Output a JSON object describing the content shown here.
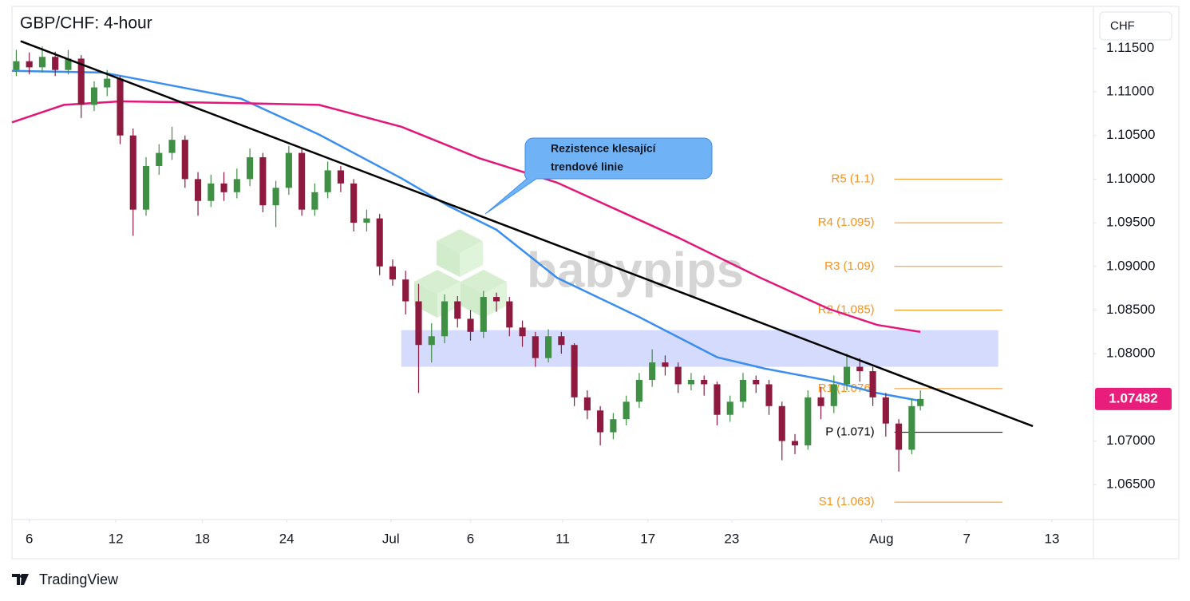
{
  "chart_data": {
    "type": "candlestick",
    "title": "GBP/CHF: 4-hour",
    "currency": "CHF",
    "watermark": "babypips",
    "brand": "TradingView",
    "xlim": [
      0,
      250
    ],
    "ylim": [
      1.061,
      1.1196
    ],
    "xticks": [
      {
        "value": 4,
        "label": "6"
      },
      {
        "value": 24,
        "label": "12"
      },
      {
        "value": 44,
        "label": "18"
      },
      {
        "value": 63.5,
        "label": "24"
      },
      {
        "value": 87.6,
        "label": "Jul"
      },
      {
        "value": 106,
        "label": "6"
      },
      {
        "value": 127.3,
        "label": "11"
      },
      {
        "value": 147,
        "label": "17"
      },
      {
        "value": 166.4,
        "label": "23"
      },
      {
        "value": 201,
        "label": "Aug"
      },
      {
        "value": 220.7,
        "label": "7"
      },
      {
        "value": 240.4,
        "label": "13"
      }
    ],
    "yticks": [
      {
        "value": 1.065,
        "label": "1.06500"
      },
      {
        "value": 1.07,
        "label": "1.07000"
      },
      {
        "value": 1.075,
        "label": "1.07500"
      },
      {
        "value": 1.08,
        "label": "1.08000"
      },
      {
        "value": 1.085,
        "label": "1.08500"
      },
      {
        "value": 1.09,
        "label": "1.09000"
      },
      {
        "value": 1.095,
        "label": "1.09500"
      },
      {
        "value": 1.1,
        "label": "1.10000"
      },
      {
        "value": 1.105,
        "label": "1.10500"
      },
      {
        "value": 1.11,
        "label": "1.11000"
      },
      {
        "value": 1.115,
        "label": "1.11500"
      }
    ],
    "up_color": "#3f8f45",
    "down_color": "#8e1b3f",
    "candles": [
      [
        1,
        1.1125,
        1.1148,
        1.1118,
        1.1135
      ],
      [
        4,
        1.1135,
        1.1145,
        1.112,
        1.1128
      ],
      [
        7,
        1.1128,
        1.1152,
        1.1122,
        1.114
      ],
      [
        10,
        1.114,
        1.1146,
        1.1118,
        1.1125
      ],
      [
        13,
        1.1125,
        1.1148,
        1.112,
        1.1138
      ],
      [
        16,
        1.1138,
        1.1142,
        1.107,
        1.1085
      ],
      [
        19,
        1.1085,
        1.1112,
        1.1078,
        1.1105
      ],
      [
        22,
        1.1105,
        1.1125,
        1.1095,
        1.1115
      ],
      [
        25,
        1.1115,
        1.1118,
        1.104,
        1.105
      ],
      [
        28,
        1.105,
        1.1058,
        1.0935,
        1.0965
      ],
      [
        31,
        1.0965,
        1.1025,
        1.0958,
        1.1015
      ],
      [
        34,
        1.1015,
        1.104,
        1.1005,
        1.103
      ],
      [
        37,
        1.103,
        1.106,
        1.1022,
        1.1045
      ],
      [
        40,
        1.1045,
        1.105,
        1.099,
        1.1
      ],
      [
        43,
        1.1,
        1.1008,
        1.0958,
        1.0975
      ],
      [
        46,
        1.0975,
        1.1005,
        1.0968,
        1.0995
      ],
      [
        49,
        1.0995,
        1.1008,
        1.0975,
        1.0985
      ],
      [
        52,
        1.0985,
        1.1012,
        1.0978,
        1.1
      ],
      [
        55,
        1.1,
        1.1035,
        1.0992,
        1.1025
      ],
      [
        58,
        1.1025,
        1.103,
        1.0962,
        1.097
      ],
      [
        61,
        1.097,
        1.0998,
        1.0945,
        1.099
      ],
      [
        64,
        1.099,
        1.1038,
        1.0982,
        1.103
      ],
      [
        67,
        1.103,
        1.1035,
        1.0958,
        1.0965
      ],
      [
        70,
        1.0965,
        1.0995,
        1.0958,
        1.0985
      ],
      [
        73,
        1.0985,
        1.102,
        1.0978,
        1.101
      ],
      [
        76,
        1.101,
        1.1015,
        1.0985,
        1.0995
      ],
      [
        79,
        1.0995,
        1.1,
        1.094,
        1.095
      ],
      [
        82,
        1.095,
        1.0965,
        1.094,
        1.0955
      ],
      [
        85,
        1.0955,
        1.096,
        1.089,
        1.09
      ],
      [
        88,
        1.09,
        1.0908,
        1.0878,
        1.0885
      ],
      [
        91,
        1.0885,
        1.0895,
        1.0845,
        1.086
      ],
      [
        94,
        1.086,
        1.088,
        1.0755,
        1.081
      ],
      [
        97,
        1.081,
        1.0835,
        1.079,
        1.082
      ],
      [
        100,
        1.082,
        1.0868,
        1.0812,
        1.086
      ],
      [
        103,
        1.086,
        1.0866,
        1.083,
        1.084
      ],
      [
        106,
        1.084,
        1.085,
        1.0815,
        1.0825
      ],
      [
        109,
        1.0825,
        1.0872,
        1.0818,
        1.0865
      ],
      [
        112,
        1.0865,
        1.087,
        1.0848,
        1.086
      ],
      [
        115,
        1.086,
        1.0865,
        1.082,
        1.083
      ],
      [
        118,
        1.083,
        1.0838,
        1.0808,
        1.082
      ],
      [
        121,
        1.082,
        1.0825,
        1.0785,
        1.0795
      ],
      [
        124,
        1.0795,
        1.0828,
        1.079,
        1.082
      ],
      [
        127,
        1.082,
        1.0825,
        1.08,
        1.081
      ],
      [
        130,
        1.081,
        1.0812,
        1.074,
        1.075
      ],
      [
        133,
        1.075,
        1.0758,
        1.0725,
        1.0735
      ],
      [
        136,
        1.0735,
        1.074,
        1.0695,
        1.071
      ],
      [
        139,
        1.071,
        1.0732,
        1.0702,
        1.0725
      ],
      [
        142,
        1.0725,
        1.0752,
        1.0718,
        1.0745
      ],
      [
        145,
        1.0745,
        1.0778,
        1.0738,
        1.077
      ],
      [
        148,
        1.077,
        1.0805,
        1.0762,
        1.079
      ],
      [
        151,
        1.079,
        1.0798,
        1.0775,
        1.0785
      ],
      [
        154,
        1.0785,
        1.079,
        1.0755,
        1.0765
      ],
      [
        157,
        1.0765,
        1.0778,
        1.0758,
        1.077
      ],
      [
        160,
        1.077,
        1.0775,
        1.0752,
        1.0765
      ],
      [
        163,
        1.0765,
        1.0768,
        1.0718,
        1.073
      ],
      [
        166,
        1.073,
        1.0752,
        1.0722,
        1.0745
      ],
      [
        169,
        1.0745,
        1.0778,
        1.0738,
        1.077
      ],
      [
        172,
        1.077,
        1.0775,
        1.0755,
        1.0765
      ],
      [
        175,
        1.0765,
        1.077,
        1.073,
        1.074
      ],
      [
        178,
        1.074,
        1.0745,
        1.0678,
        1.07
      ],
      [
        181,
        1.07,
        1.0708,
        1.0685,
        1.0695
      ],
      [
        184,
        1.0695,
        1.0758,
        1.069,
        1.075
      ],
      [
        187,
        1.075,
        1.0762,
        1.0725,
        1.074
      ],
      [
        190,
        1.074,
        1.0775,
        1.0732,
        1.0765
      ],
      [
        193,
        1.0765,
        1.08,
        1.0758,
        1.0785
      ],
      [
        196,
        1.0785,
        1.0795,
        1.0768,
        1.078
      ],
      [
        199,
        1.078,
        1.0785,
        1.074,
        1.075
      ],
      [
        202,
        1.075,
        1.0755,
        1.0705,
        1.072
      ],
      [
        205,
        1.072,
        1.0725,
        1.0665,
        1.069
      ],
      [
        208,
        1.069,
        1.0748,
        1.0685,
        1.074
      ],
      [
        210,
        1.074,
        1.0758,
        1.0735,
        1.07482
      ]
    ],
    "last_price_color": "#e91e7c",
    "moving_averages": [
      {
        "color": "#3a8ef0",
        "x": [
          0,
          21,
          34,
          53,
          71,
          90,
          101,
          112,
          126,
          145,
          163,
          174,
          189,
          200,
          210
        ],
        "values": [
          1.1124,
          1.1122,
          1.111,
          1.1092,
          1.1051,
          1.1001,
          1.0969,
          1.0942,
          1.0887,
          1.0842,
          1.0796,
          1.0783,
          1.0769,
          1.0755,
          1.0746
        ]
      },
      {
        "color": "#e3177a",
        "x": [
          0,
          12,
          25,
          53,
          71,
          90,
          108,
          126,
          138,
          154,
          173,
          189,
          200,
          210
        ],
        "values": [
          1.1065,
          1.1085,
          1.1089,
          1.1087,
          1.1085,
          1.106,
          1.1024,
          1.0996,
          1.0969,
          1.0933,
          1.0887,
          1.0851,
          1.0833,
          1.0825
        ]
      }
    ],
    "trendline": {
      "color": "#000000",
      "x": [
        2,
        236
      ],
      "values": [
        1.1158,
        1.0717
      ]
    },
    "zone": {
      "color": "#c9d2fb",
      "x": [
        90,
        228
      ],
      "values": [
        1.0785,
        1.0827
      ]
    },
    "pivot_x": [
      204,
      229
    ],
    "pivots": [
      {
        "label": "R5 (1.1)",
        "value": 1.1,
        "color": "#f7931a"
      },
      {
        "label": "R4 (1.095)",
        "value": 1.095,
        "color": "#f7931a"
      },
      {
        "label": "R3 (1.09)",
        "value": 1.09,
        "color": "#f7931a"
      },
      {
        "label": "R2 (1.085)",
        "value": 1.085,
        "color": "#f7931a"
      },
      {
        "label": "R1 (1.076)",
        "value": 1.076,
        "color": "#f7931a"
      },
      {
        "label": "P (1.071)",
        "value": 1.071,
        "color": "#000000"
      },
      {
        "label": "S1 (1.063)",
        "value": 1.063,
        "color": "#f7931a"
      }
    ],
    "annotation": {
      "lines": [
        "Rezistence klesající",
        "trendové linie"
      ]
    }
  }
}
